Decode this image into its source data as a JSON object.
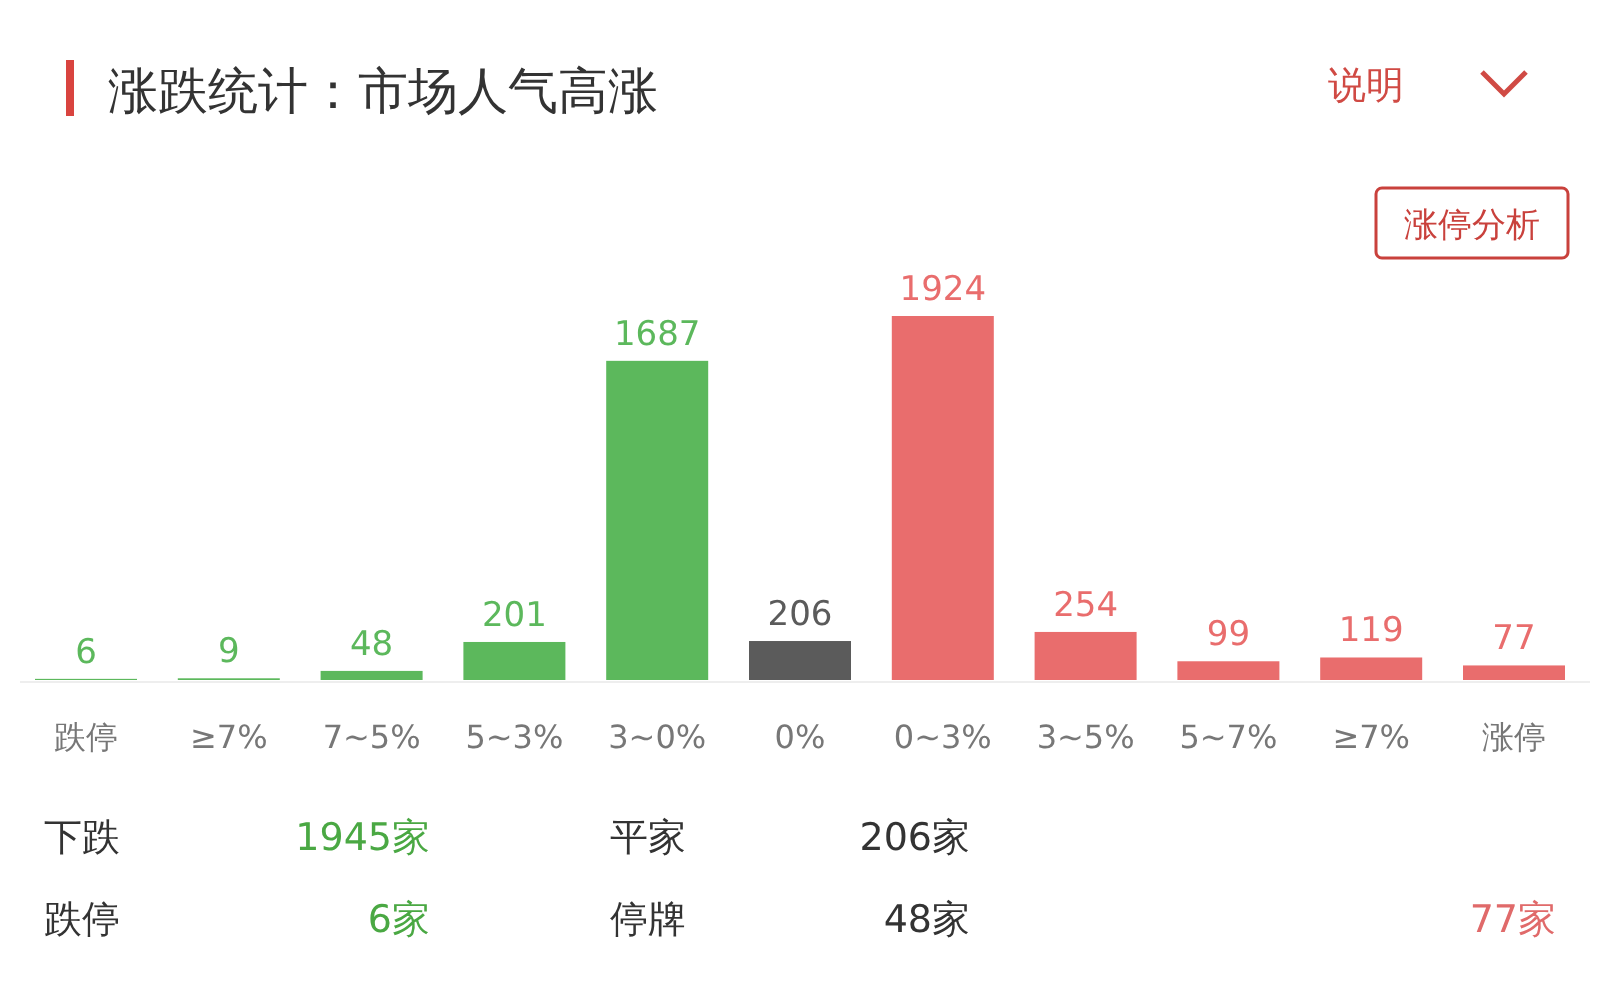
{
  "chart_data": {
    "type": "bar",
    "title": "涨跌统计：市场人气高涨",
    "categories": [
      "跌停",
      "≥7%",
      "7~5%",
      "5~3%",
      "3~0%",
      "0%",
      "0~3%",
      "3~5%",
      "5~7%",
      "≥7%",
      "涨停"
    ],
    "values": [
      6,
      9,
      48,
      201,
      1687,
      206,
      1924,
      254,
      99,
      119,
      77
    ],
    "colors": [
      "#5cb85c",
      "#5cb85c",
      "#5cb85c",
      "#5cb85c",
      "#5cb85c",
      "#5b5b5b",
      "#e96d6d",
      "#e96d6d",
      "#e96d6d",
      "#e96d6d",
      "#e96d6d"
    ],
    "data_labels": true,
    "annotations": [
      "说明",
      "涨停分析",
      "下跌",
      "1945家",
      "平家",
      "206家",
      "跌停",
      "6家",
      "停牌",
      "48家",
      "77家"
    ]
  }
}
